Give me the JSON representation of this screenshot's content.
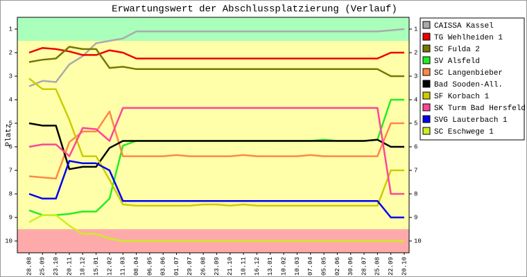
{
  "chart_data": {
    "type": "line",
    "title": "Erwartungswert der Abschlussplatzierung (Verlauf)",
    "y_label": "Platz",
    "categories": [
      "28.08",
      "25.09",
      "23.10",
      "20.11",
      "18.12",
      "15.01",
      "12.02",
      "11.03",
      "08.04",
      "06.05",
      "03.06",
      "01.07",
      "29.07",
      "26.08",
      "23.09",
      "21.10",
      "18.11",
      "16.12",
      "13.01",
      "10.02",
      "10.03",
      "07.04",
      "05.05",
      "02.06",
      "30.06",
      "28.07",
      "25.08",
      "22.09",
      "20.10"
    ],
    "ylim": [
      10.5,
      0.5
    ],
    "yticks": [
      1,
      2,
      3,
      4,
      5,
      6,
      7,
      8,
      9,
      10
    ],
    "bands": [
      {
        "from": 0.5,
        "to": 1.5,
        "color": "#aaffbb"
      },
      {
        "from": 1.5,
        "to": 9.5,
        "color": "#ffffaa"
      },
      {
        "from": 9.5,
        "to": 10.5,
        "color": "#ffaaaa"
      }
    ],
    "series": [
      {
        "name": "CAISSA Kassel",
        "color": "#aaaaaa",
        "values": [
          3.43,
          3.2,
          3.25,
          2.5,
          2.15,
          1.6,
          1.5,
          1.4,
          1.1,
          1.1,
          1.1,
          1.1,
          1.1,
          1.1,
          1.1,
          1.1,
          1.1,
          1.1,
          1.1,
          1.1,
          1.1,
          1.1,
          1.1,
          1.1,
          1.1,
          1.1,
          1.1,
          1.05,
          1.0
        ]
      },
      {
        "name": "TG Wehlheiden 1",
        "color": "#ee0000",
        "values": [
          2.0,
          1.8,
          1.85,
          1.95,
          2.1,
          2.1,
          1.9,
          2.0,
          2.25,
          2.25,
          2.25,
          2.25,
          2.25,
          2.25,
          2.25,
          2.25,
          2.25,
          2.25,
          2.25,
          2.25,
          2.25,
          2.25,
          2.25,
          2.25,
          2.25,
          2.25,
          2.25,
          2.0,
          2.0
        ]
      },
      {
        "name": "SC Fulda 2",
        "color": "#777700",
        "values": [
          2.4,
          2.3,
          2.25,
          1.75,
          1.85,
          1.85,
          2.65,
          2.6,
          2.7,
          2.7,
          2.7,
          2.7,
          2.7,
          2.7,
          2.7,
          2.7,
          2.7,
          2.7,
          2.7,
          2.7,
          2.7,
          2.7,
          2.7,
          2.7,
          2.7,
          2.7,
          2.7,
          3.0,
          3.0
        ]
      },
      {
        "name": "SV Alsfeld",
        "color": "#22ee22",
        "values": [
          8.7,
          8.9,
          8.9,
          8.85,
          8.75,
          8.75,
          8.2,
          5.95,
          5.75,
          5.75,
          5.75,
          5.75,
          5.75,
          5.75,
          5.75,
          5.75,
          5.75,
          5.75,
          5.75,
          5.75,
          5.75,
          5.75,
          5.7,
          5.75,
          5.75,
          5.75,
          5.7,
          4.0,
          4.0
        ]
      },
      {
        "name": "SC Langenbieber",
        "color": "#ff8844",
        "values": [
          7.25,
          7.3,
          7.35,
          5.8,
          5.35,
          5.35,
          4.5,
          6.4,
          6.4,
          6.4,
          6.4,
          6.35,
          6.4,
          6.4,
          6.4,
          6.4,
          6.35,
          6.4,
          6.4,
          6.4,
          6.4,
          6.35,
          6.4,
          6.4,
          6.4,
          6.4,
          6.4,
          5.0,
          5.0
        ]
      },
      {
        "name": "Bad Sooden-All.",
        "color": "#000000",
        "values": [
          5.0,
          5.1,
          5.1,
          6.95,
          6.85,
          6.85,
          6.05,
          5.75,
          5.75,
          5.75,
          5.75,
          5.75,
          5.75,
          5.75,
          5.75,
          5.75,
          5.75,
          5.75,
          5.75,
          5.75,
          5.75,
          5.75,
          5.75,
          5.75,
          5.75,
          5.75,
          5.7,
          6.0,
          6.0
        ]
      },
      {
        "name": "SF Korbach 1",
        "color": "#cccc00",
        "values": [
          3.1,
          3.55,
          3.55,
          4.85,
          6.4,
          6.4,
          7.4,
          8.45,
          8.5,
          8.5,
          8.5,
          8.5,
          8.5,
          8.45,
          8.45,
          8.5,
          8.45,
          8.5,
          8.5,
          8.5,
          8.5,
          8.5,
          8.5,
          8.5,
          8.5,
          8.5,
          8.5,
          7.0,
          7.0
        ]
      },
      {
        "name": "SK Turm Bad Hersfeld",
        "color": "#ff4499",
        "values": [
          6.0,
          5.9,
          5.9,
          6.4,
          5.2,
          5.25,
          5.75,
          4.35,
          4.35,
          4.35,
          4.35,
          4.35,
          4.35,
          4.35,
          4.35,
          4.35,
          4.35,
          4.35,
          4.35,
          4.35,
          4.35,
          4.35,
          4.35,
          4.35,
          4.35,
          4.35,
          4.35,
          8.0,
          8.0
        ]
      },
      {
        "name": "SVG Lauterbach 1",
        "color": "#0000ee",
        "values": [
          8.0,
          8.2,
          8.2,
          6.6,
          6.7,
          6.7,
          7.0,
          8.3,
          8.3,
          8.3,
          8.3,
          8.3,
          8.3,
          8.3,
          8.3,
          8.3,
          8.3,
          8.3,
          8.3,
          8.3,
          8.3,
          8.3,
          8.3,
          8.3,
          8.3,
          8.3,
          8.3,
          9.0,
          9.0
        ]
      },
      {
        "name": "SC Eschwege 1",
        "color": "#ccee22",
        "values": [
          9.2,
          8.9,
          8.9,
          9.35,
          9.7,
          9.7,
          9.9,
          10.0,
          10.0,
          10.0,
          10.0,
          10.0,
          10.0,
          10.0,
          10.0,
          10.0,
          10.0,
          10.0,
          10.0,
          10.0,
          10.0,
          10.0,
          10.0,
          10.0,
          10.0,
          10.0,
          10.0,
          10.0,
          10.0
        ]
      }
    ]
  }
}
